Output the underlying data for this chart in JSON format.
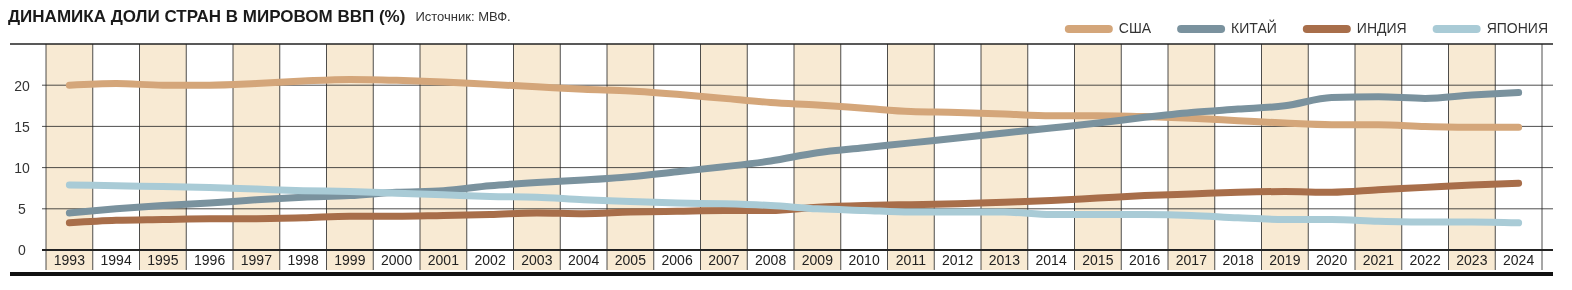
{
  "chart_data": {
    "type": "line",
    "title": "ДИНАМИКА ДОЛИ СТРАН В МИРОВОМ ВВП (%)",
    "annotations": [
      "Источник: МВФ."
    ],
    "categories": [
      "1993",
      "1994",
      "1995",
      "1996",
      "1997",
      "1998",
      "1999",
      "2000",
      "2001",
      "2002",
      "2003",
      "2004",
      "2005",
      "2006",
      "2007",
      "2008",
      "2009",
      "2010",
      "2011",
      "2012",
      "2013",
      "2014",
      "2015",
      "2016",
      "2017",
      "2018",
      "2019",
      "2020",
      "2021",
      "2022",
      "2023",
      "2024"
    ],
    "series": [
      {
        "name": "США",
        "color": "#d4a67a",
        "values": [
          20.0,
          20.2,
          20.0,
          20.0,
          20.2,
          20.5,
          20.7,
          20.6,
          20.4,
          20.1,
          19.8,
          19.5,
          19.3,
          18.9,
          18.4,
          17.9,
          17.6,
          17.2,
          16.8,
          16.7,
          16.5,
          16.3,
          16.3,
          16.2,
          16.0,
          15.7,
          15.4,
          15.2,
          15.2,
          15.0,
          14.9,
          14.9
        ]
      },
      {
        "name": "КИТАЙ",
        "color": "#7a929e",
        "values": [
          4.5,
          5.0,
          5.4,
          5.7,
          6.1,
          6.4,
          6.6,
          7.0,
          7.2,
          7.8,
          8.2,
          8.5,
          8.9,
          9.5,
          10.1,
          10.8,
          11.8,
          12.4,
          13.0,
          13.6,
          14.2,
          14.8,
          15.4,
          16.1,
          16.7,
          17.1,
          17.5,
          18.5,
          18.6,
          18.4,
          18.8,
          19.1
        ]
      },
      {
        "name": "ИНДИЯ",
        "color": "#a86e4a",
        "values": [
          3.3,
          3.6,
          3.7,
          3.8,
          3.8,
          3.9,
          4.1,
          4.1,
          4.2,
          4.3,
          4.5,
          4.4,
          4.6,
          4.7,
          4.8,
          4.8,
          5.2,
          5.4,
          5.5,
          5.6,
          5.8,
          6.0,
          6.3,
          6.6,
          6.8,
          7.0,
          7.1,
          7.0,
          7.3,
          7.6,
          7.9,
          8.1
        ]
      },
      {
        "name": "ЯПОНИЯ",
        "color": "#a9cbd6",
        "values": [
          7.9,
          7.8,
          7.7,
          7.6,
          7.4,
          7.2,
          7.1,
          6.9,
          6.7,
          6.5,
          6.4,
          6.1,
          5.9,
          5.7,
          5.6,
          5.4,
          5.0,
          4.8,
          4.6,
          4.6,
          4.6,
          4.3,
          4.3,
          4.3,
          4.2,
          3.9,
          3.7,
          3.7,
          3.5,
          3.4,
          3.4,
          3.3
        ]
      }
    ],
    "ylim": [
      0,
      25
    ],
    "yticks": [
      0,
      5,
      10,
      15,
      20,
      {
        "value": 25,
        "label": null
      }
    ],
    "grid": true,
    "legend": "top right",
    "marker": "none",
    "line_style": "solid"
  }
}
